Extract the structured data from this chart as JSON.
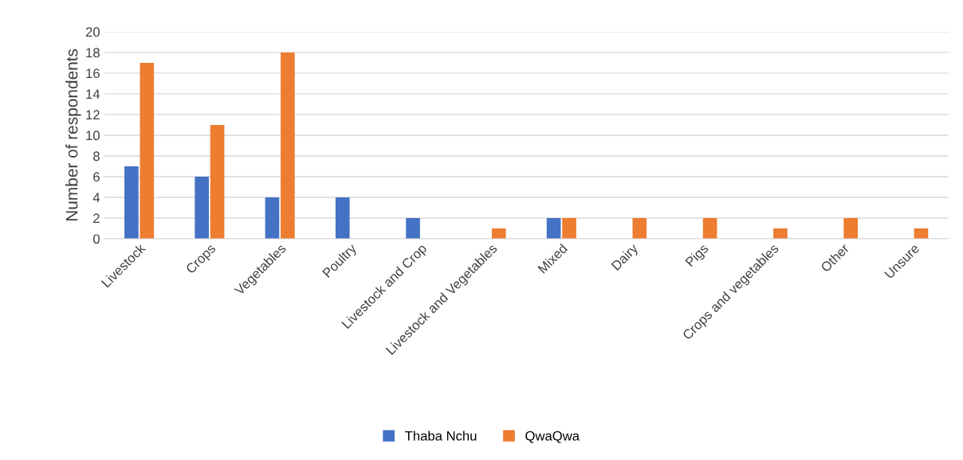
{
  "chart_data": {
    "type": "bar",
    "ylabel": "Number of respondents",
    "categories": [
      "Livestock",
      "Crops",
      "Vegetables",
      "Poultry",
      "Livestock and Crop",
      "Livestock and Vegetables",
      "Mixed",
      "Dairy",
      "Pigs",
      "Crops and vegetables",
      "Other",
      "Unsure"
    ],
    "series": [
      {
        "name": "Thaba Nchu",
        "color": "#4472c4",
        "values": [
          7,
          6,
          4,
          4,
          2,
          null,
          2,
          null,
          null,
          null,
          null,
          null
        ]
      },
      {
        "name": "QwaQwa",
        "color": "#ed7d31",
        "values": [
          17,
          11,
          18,
          null,
          null,
          1,
          2,
          2,
          2,
          1,
          2,
          1
        ]
      }
    ],
    "ylim": [
      0,
      20
    ],
    "yticks": [
      0,
      2,
      4,
      6,
      8,
      10,
      12,
      14,
      16,
      18,
      20
    ],
    "grid": "y",
    "legend": "bottom"
  }
}
